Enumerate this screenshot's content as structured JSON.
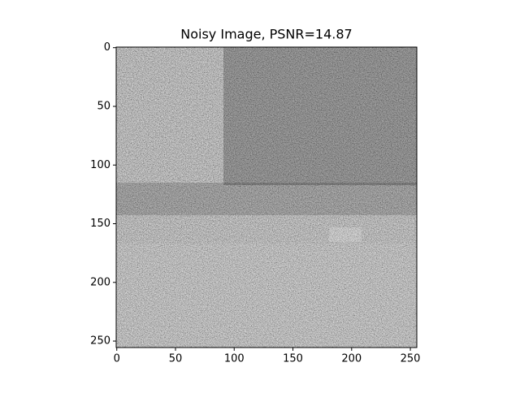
{
  "chart_data": {
    "type": "image",
    "title": "Noisy Image, PSNR=14.87",
    "xlim": [
      -0.5,
      255.5
    ],
    "ylim": [
      255.5,
      -0.5
    ],
    "xticks": [
      0,
      50,
      100,
      150,
      200,
      250
    ],
    "yticks": [
      0,
      50,
      100,
      150,
      200,
      250
    ]
  }
}
